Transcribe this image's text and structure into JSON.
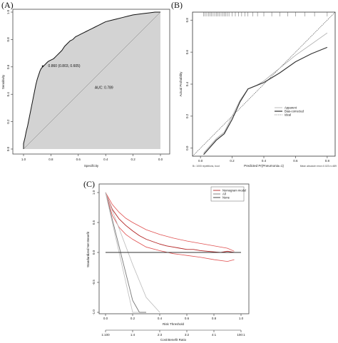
{
  "labels": {
    "A": "(A)",
    "B": "(B)",
    "C": "(C)"
  },
  "chart_data": [
    {
      "type": "line",
      "panel": "A",
      "xlabel": "Specificity",
      "ylabel": "Sensitivity",
      "x_reversed": true,
      "xlim": [
        1.0,
        0.0
      ],
      "ylim": [
        0.0,
        1.0
      ],
      "x_ticks": [
        "1.0",
        "0.8",
        "0.6",
        "0.4",
        "0.2",
        "0.0"
      ],
      "x_tick_values": [
        1.0,
        0.8,
        0.6,
        0.4,
        0.2,
        0.0
      ],
      "y_ticks": [
        "0.0",
        "0.2",
        "0.4",
        "0.6",
        "0.8",
        "1.0"
      ],
      "y_tick_values": [
        0.0,
        0.2,
        0.4,
        0.6,
        0.8,
        1.0
      ],
      "annotations": [
        "AUC: 0.789",
        "0.860 (0.803, 0.605)"
      ],
      "annotation_pos": [
        [
          0.48,
          0.44
        ],
        [
          0.82,
          0.6
        ]
      ],
      "roc": {
        "spec": [
          1.0,
          1.0,
          0.99,
          0.98,
          0.97,
          0.96,
          0.95,
          0.94,
          0.93,
          0.92,
          0.91,
          0.9,
          0.89,
          0.88,
          0.87,
          0.86,
          0.85,
          0.84,
          0.83,
          0.82,
          0.8,
          0.78,
          0.76,
          0.74,
          0.72,
          0.7,
          0.68,
          0.66,
          0.64,
          0.62,
          0.6,
          0.58,
          0.56,
          0.54,
          0.52,
          0.5,
          0.48,
          0.46,
          0.44,
          0.42,
          0.4,
          0.36,
          0.32,
          0.28,
          0.24,
          0.2,
          0.16,
          0.12,
          0.08,
          0.04,
          0.0
        ],
        "sens": [
          0.0,
          0.04,
          0.08,
          0.13,
          0.17,
          0.22,
          0.27,
          0.32,
          0.37,
          0.42,
          0.47,
          0.51,
          0.54,
          0.57,
          0.59,
          0.6,
          0.61,
          0.62,
          0.63,
          0.64,
          0.65,
          0.66,
          0.68,
          0.7,
          0.72,
          0.75,
          0.77,
          0.79,
          0.8,
          0.82,
          0.83,
          0.84,
          0.85,
          0.86,
          0.87,
          0.88,
          0.89,
          0.9,
          0.91,
          0.92,
          0.93,
          0.94,
          0.95,
          0.96,
          0.97,
          0.98,
          0.985,
          0.99,
          0.995,
          1.0,
          1.0
        ]
      }
    },
    {
      "type": "line",
      "panel": "B",
      "xlabel": "Predicted Pr{Pneumonia=1}",
      "ylabel": "Actual Probability",
      "xlim": [
        -0.05,
        0.85
      ],
      "ylim": [
        -0.05,
        0.85
      ],
      "x_ticks": [
        "0.0",
        "0.2",
        "0.4",
        "0.6",
        "0.8"
      ],
      "x_tick_values": [
        0.0,
        0.2,
        0.4,
        0.6,
        0.8
      ],
      "y_ticks": [
        "0.0",
        "0.2",
        "0.4",
        "0.6",
        "0.8"
      ],
      "y_tick_values": [
        0.0,
        0.2,
        0.4,
        0.6,
        0.8
      ],
      "legend": [
        "Apparent",
        "Bias-corrected",
        "Ideal"
      ],
      "footer_left": "B= 1000 repetitions, boot",
      "footer_right": "Mean absolute error=0.023 n=489",
      "rug_x": [
        0.02,
        0.03,
        0.04,
        0.05,
        0.06,
        0.07,
        0.08,
        0.09,
        0.1,
        0.11,
        0.12,
        0.13,
        0.14,
        0.15,
        0.16,
        0.17,
        0.18,
        0.2,
        0.22,
        0.24,
        0.26,
        0.28,
        0.3,
        0.33,
        0.36,
        0.4,
        0.45,
        0.5,
        0.55,
        0.6,
        0.66,
        0.72,
        0.8
      ],
      "series": [
        {
          "name": "Apparent",
          "x": [
            0.02,
            0.1,
            0.15,
            0.2,
            0.25,
            0.3,
            0.35,
            0.4,
            0.5,
            0.6,
            0.7,
            0.8
          ],
          "y": [
            -0.03,
            0.06,
            0.1,
            0.2,
            0.3,
            0.37,
            0.39,
            0.42,
            0.5,
            0.58,
            0.65,
            0.72
          ]
        },
        {
          "name": "Bias-corrected",
          "x": [
            0.02,
            0.1,
            0.15,
            0.2,
            0.25,
            0.3,
            0.35,
            0.4,
            0.5,
            0.6,
            0.7,
            0.8
          ],
          "y": [
            -0.04,
            0.05,
            0.09,
            0.18,
            0.29,
            0.37,
            0.39,
            0.41,
            0.47,
            0.54,
            0.59,
            0.63
          ]
        },
        {
          "name": "Ideal",
          "x": [
            -0.05,
            0.85
          ],
          "y": [
            -0.05,
            0.85
          ]
        }
      ]
    },
    {
      "type": "line",
      "panel": "C",
      "xlabel": "Risk Threshold",
      "ylabel": "Standardized Net Benefit",
      "xlabel2": "Cost:Benefit Ratio",
      "xlim": [
        0.0,
        1.0
      ],
      "ylim": [
        -1.0,
        1.0
      ],
      "x_ticks": [
        "0.0",
        "0.2",
        "0.4",
        "0.6",
        "0.8",
        "1.0"
      ],
      "x_tick_values": [
        0.0,
        0.2,
        0.4,
        0.6,
        0.8,
        1.0
      ],
      "y_ticks": [
        "-1.0",
        "-0.5",
        "0.0",
        "0.5",
        "1.0"
      ],
      "y_tick_values": [
        -1.0,
        -0.5,
        0.0,
        0.5,
        1.0
      ],
      "cb_ticks": [
        "1:100",
        "1:4",
        "2:3",
        "3:2",
        "4:1",
        "100:1"
      ],
      "legend": [
        "Nomogram model",
        "All",
        "None"
      ],
      "series": [
        {
          "name": "Nomogram model",
          "x": [
            0.0,
            0.05,
            0.1,
            0.15,
            0.2,
            0.25,
            0.3,
            0.35,
            0.4,
            0.45,
            0.5,
            0.55,
            0.6,
            0.65,
            0.7,
            0.75,
            0.8,
            0.85,
            0.9,
            0.95
          ],
          "y": [
            1.0,
            0.72,
            0.56,
            0.45,
            0.36,
            0.28,
            0.22,
            0.18,
            0.14,
            0.11,
            0.09,
            0.07,
            0.05,
            0.05,
            0.03,
            0.02,
            0.01,
            0.0,
            0.02,
            0.0
          ]
        },
        {
          "name": "Nomogram upper CI",
          "x": [
            0.0,
            0.05,
            0.1,
            0.15,
            0.2,
            0.3,
            0.4,
            0.5,
            0.6,
            0.7,
            0.8,
            0.9,
            0.95
          ],
          "y": [
            1.0,
            0.8,
            0.67,
            0.57,
            0.5,
            0.38,
            0.3,
            0.24,
            0.19,
            0.15,
            0.11,
            0.07,
            0.02
          ]
        },
        {
          "name": "Nomogram lower CI",
          "x": [
            0.0,
            0.05,
            0.1,
            0.15,
            0.2,
            0.3,
            0.4,
            0.5,
            0.6,
            0.7,
            0.8,
            0.9,
            0.95
          ],
          "y": [
            1.0,
            0.62,
            0.42,
            0.3,
            0.22,
            0.09,
            0.03,
            -0.02,
            -0.05,
            -0.08,
            -0.12,
            -0.15,
            -0.12
          ]
        },
        {
          "name": "All",
          "x": [
            0.0,
            0.05,
            0.1,
            0.15,
            0.2,
            0.25,
            0.3
          ],
          "y": [
            1.0,
            0.55,
            0.1,
            -0.35,
            -0.8,
            -1.25,
            -1.7
          ]
        },
        {
          "name": "All lower CI",
          "x": [
            0.0,
            0.05,
            0.1,
            0.15,
            0.2,
            0.25
          ],
          "y": [
            1.0,
            0.5,
            0.0,
            -0.5,
            -1.0,
            -1.5
          ]
        },
        {
          "name": "All upper CI",
          "x": [
            0.0,
            0.1,
            0.2,
            0.3,
            0.4
          ],
          "y": [
            1.0,
            0.4,
            -0.2,
            -0.75,
            -1.3
          ]
        },
        {
          "name": "None",
          "x": [
            0.0,
            1.0
          ],
          "y": [
            0.0,
            0.0
          ]
        }
      ]
    }
  ]
}
